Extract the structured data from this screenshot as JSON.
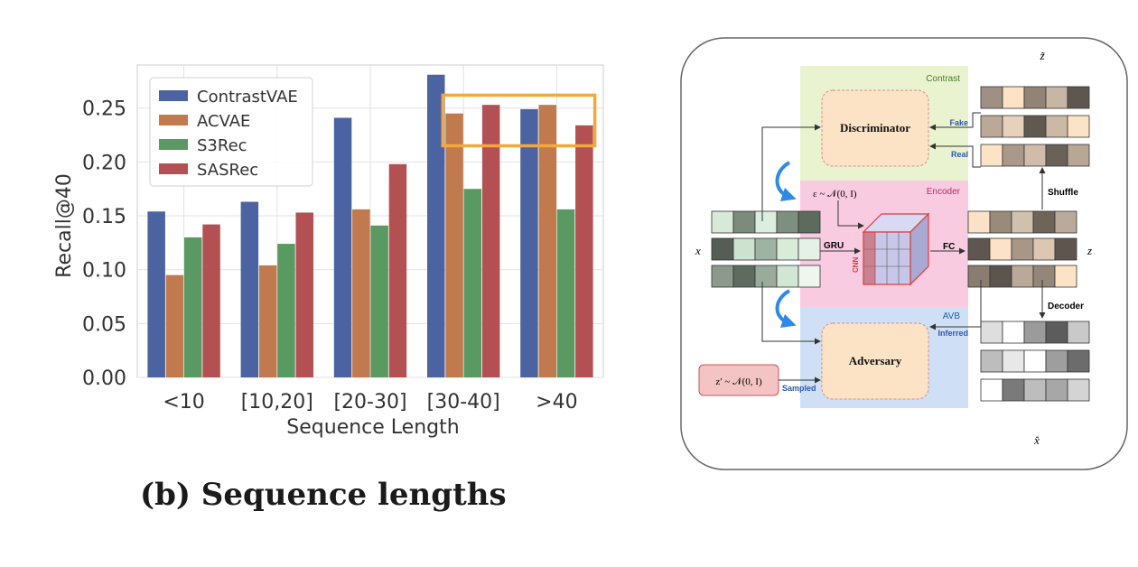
{
  "chart_data": {
    "type": "bar",
    "categories": [
      "<10",
      "[10,20]",
      "[20-30]",
      "[30-40]",
      ">40"
    ],
    "series": [
      {
        "name": "ContrastVAE",
        "values": [
          0.154,
          0.163,
          0.241,
          0.281,
          0.249
        ],
        "color": "#4c63a1"
      },
      {
        "name": "ACVAE",
        "values": [
          0.095,
          0.104,
          0.156,
          0.245,
          0.253
        ],
        "color": "#c07a4d"
      },
      {
        "name": "S3Rec",
        "values": [
          0.13,
          0.124,
          0.141,
          0.175,
          0.156
        ],
        "color": "#5a9a62"
      },
      {
        "name": "SASRec",
        "values": [
          0.142,
          0.153,
          0.198,
          0.253,
          0.234
        ],
        "color": "#b35054"
      }
    ],
    "title": "",
    "xlabel": "Sequence Length",
    "ylabel": "Recall@40",
    "ylim": [
      0,
      0.29
    ],
    "yticks": [
      "0.00",
      "0.05",
      "0.10",
      "0.15",
      "0.20",
      "0.25"
    ],
    "grid": true,
    "legend": "top-left",
    "highlight": {
      "categories": [
        "[30-40]",
        ">40"
      ],
      "series": [
        "ACVAE",
        "SASRec"
      ],
      "y_range": [
        0.215,
        0.262
      ],
      "color": "#f2a93b"
    }
  },
  "caption": "(b) Sequence lengths",
  "diagram": {
    "sections": {
      "contrast": "Contrast",
      "encoder": "Encoder",
      "avb": "AVB"
    },
    "boxes": {
      "discriminator": "Discriminator",
      "adversary": "Adversary"
    },
    "labels": {
      "fake": "Fake",
      "real": "Real",
      "shuffle": "Shuffle",
      "decoder": "Decoder",
      "inferred": "Inferred",
      "sampled": "Sampled",
      "gru": "GRU",
      "fc": "FC",
      "cnn": "CNN"
    },
    "math": {
      "epsilon": "ε ~ 𝒩(0, I)",
      "z_prior": "z′ ~ 𝒩(0, I)",
      "x": "x",
      "z": "z",
      "z_tilde": "z̃",
      "x_hat": "x̂"
    },
    "colors": {
      "contrast": "#eaf3cf",
      "encoder": "#f8cbe0",
      "avb": "#cfe0f6",
      "box": "#fde3c6",
      "arrow": "#2f8ae5",
      "cnn": "#e03a3a"
    }
  }
}
